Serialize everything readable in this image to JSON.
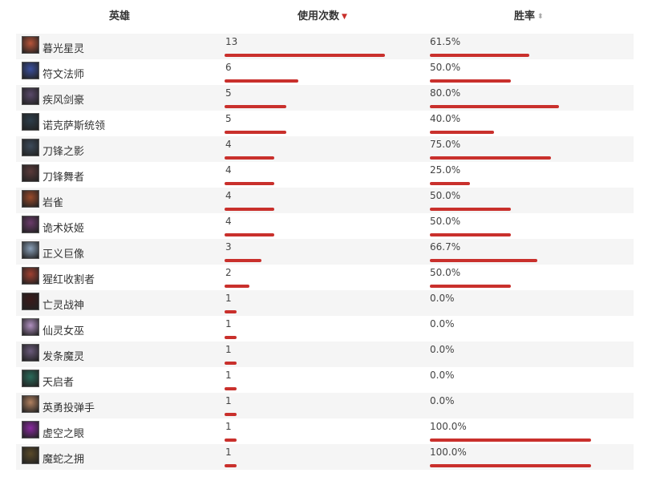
{
  "header": {
    "hero": "英雄",
    "count": "使用次数",
    "rate": "胜率",
    "count_sort_icon": "sort-desc-active-icon",
    "rate_sort_icon": "sort-both-icon"
  },
  "colors": {
    "bar": "#c9302c",
    "row_alt": "#f5f5f5"
  },
  "rows": [
    {
      "name": "暮光星灵",
      "count": "13",
      "count_value": 13,
      "rate": "61.5%",
      "rate_value": 61.5,
      "avatar_color": "#b8543a"
    },
    {
      "name": "符文法师",
      "count": "6",
      "count_value": 6,
      "rate": "50.0%",
      "rate_value": 50.0,
      "avatar_color": "#3a4f9e"
    },
    {
      "name": "疾风剑豪",
      "count": "5",
      "count_value": 5,
      "rate": "80.0%",
      "rate_value": 80.0,
      "avatar_color": "#5a4a6a"
    },
    {
      "name": "诺克萨斯统领",
      "count": "5",
      "count_value": 5,
      "rate": "40.0%",
      "rate_value": 40.0,
      "avatar_color": "#2d3d4a"
    },
    {
      "name": "刀锋之影",
      "count": "4",
      "count_value": 4,
      "rate": "75.0%",
      "rate_value": 75.0,
      "avatar_color": "#3c4a5a"
    },
    {
      "name": "刀锋舞者",
      "count": "4",
      "count_value": 4,
      "rate": "25.0%",
      "rate_value": 25.0,
      "avatar_color": "#5a3a3a"
    },
    {
      "name": "岩雀",
      "count": "4",
      "count_value": 4,
      "rate": "50.0%",
      "rate_value": 50.0,
      "avatar_color": "#9a4a2a"
    },
    {
      "name": "诡术妖姬",
      "count": "4",
      "count_value": 4,
      "rate": "50.0%",
      "rate_value": 50.0,
      "avatar_color": "#6a3a6a"
    },
    {
      "name": "正义巨像",
      "count": "3",
      "count_value": 3,
      "rate": "66.7%",
      "rate_value": 66.7,
      "avatar_color": "#8aa0b8"
    },
    {
      "name": "猩红收割者",
      "count": "2",
      "count_value": 2,
      "rate": "50.0%",
      "rate_value": 50.0,
      "avatar_color": "#a04030"
    },
    {
      "name": "亡灵战神",
      "count": "1",
      "count_value": 1,
      "rate": "0.0%",
      "rate_value": 0.0,
      "avatar_color": "#3a1a1a"
    },
    {
      "name": "仙灵女巫",
      "count": "1",
      "count_value": 1,
      "rate": "0.0%",
      "rate_value": 0.0,
      "avatar_color": "#b090c0"
    },
    {
      "name": "发条魔灵",
      "count": "1",
      "count_value": 1,
      "rate": "0.0%",
      "rate_value": 0.0,
      "avatar_color": "#6a5a7a"
    },
    {
      "name": "天启者",
      "count": "1",
      "count_value": 1,
      "rate": "0.0%",
      "rate_value": 0.0,
      "avatar_color": "#2a6a5a"
    },
    {
      "name": "英勇投弹手",
      "count": "1",
      "count_value": 1,
      "rate": "0.0%",
      "rate_value": 0.0,
      "avatar_color": "#b08060"
    },
    {
      "name": "虚空之眼",
      "count": "1",
      "count_value": 1,
      "rate": "100.0%",
      "rate_value": 100.0,
      "avatar_color": "#8a2aa0"
    },
    {
      "name": "魔蛇之拥",
      "count": "1",
      "count_value": 1,
      "rate": "100.0%",
      "rate_value": 100.0,
      "avatar_color": "#5a4a2a"
    }
  ]
}
